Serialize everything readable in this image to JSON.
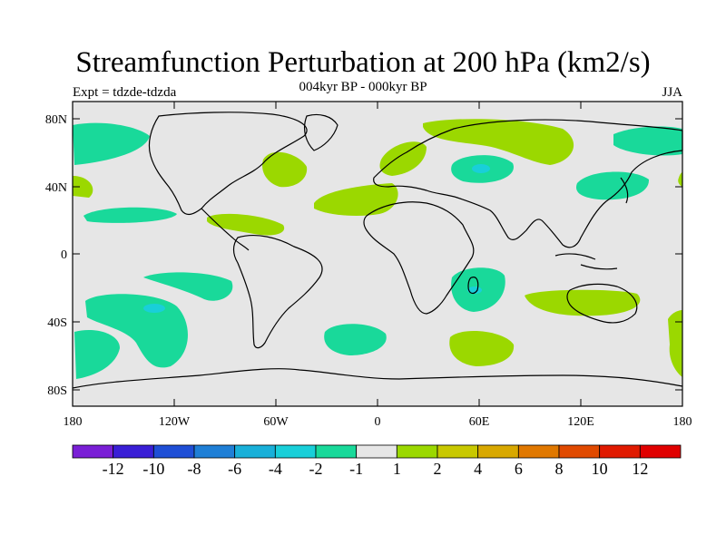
{
  "title": "Streamfunction Perturbation at 200 hPa (km2/s)",
  "subtitle": "004kyr BP - 000kyr BP",
  "left_label": "Expt = tdzde-tdzda",
  "right_label": "JJA",
  "axes": {
    "lon_ticks": [
      "180",
      "120W",
      "60W",
      "0",
      "60E",
      "120E",
      "180"
    ],
    "lat_ticks": [
      "80N",
      "40N",
      "0",
      "40S",
      "80S"
    ]
  },
  "colorbar": {
    "labels": [
      "-12",
      "-10",
      "-8",
      "-6",
      "-4",
      "-2",
      "-1",
      "1",
      "2",
      "4",
      "6",
      "8",
      "10",
      "12"
    ],
    "colors": [
      "#7a1fd6",
      "#3a1fd6",
      "#1f4fd6",
      "#1f7fd6",
      "#19b0d9",
      "#19cfd9",
      "#19d99a",
      "#e6e6e6",
      "#9bd800",
      "#c8c800",
      "#d8a800",
      "#e07800",
      "#e04a00",
      "#e01a00",
      "#e00000"
    ]
  },
  "palette": {
    "positive": "#9bd800",
    "negative": "#19d99a",
    "negative_core": "#19cfd9",
    "background": "#e6e6e6"
  }
}
